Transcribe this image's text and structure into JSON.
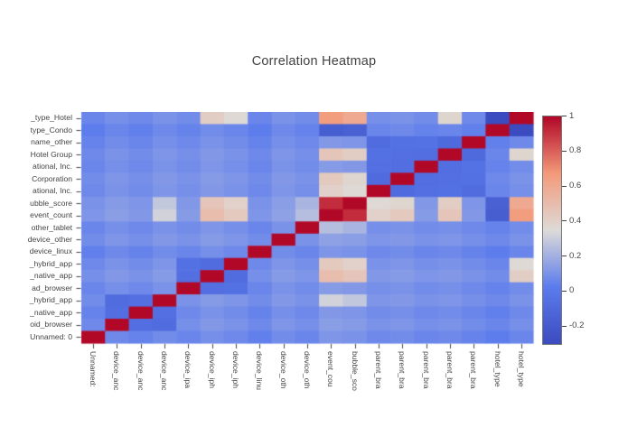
{
  "chart_data": {
    "type": "heatmap",
    "title": "Correlation Heatmap",
    "x_labels": [
      "Unnamed:",
      "device_anc",
      "device_anc",
      "device_anc",
      "device_ipa",
      "device_iph",
      "device_iph",
      "device_linu",
      "device_oth",
      "device_oth",
      "event_cou",
      "bubble_sco",
      "parent_bra",
      "parent_bra",
      "parent_bra",
      "parent_bra",
      "parent_bra",
      "hotel_type",
      "hotel_type"
    ],
    "y_labels": [
      "_type_Hotel",
      "type_Condo",
      "name_other",
      "Hotel Group",
      "ational, Inc.",
      "Corporation",
      "ational, Inc.",
      "ubble_score",
      "event_count",
      "other_tablet",
      "device_other",
      "device_linux",
      "_hybrid_app",
      "_native_app",
      "ad_browser",
      "_hybrid_app",
      "_native_app",
      "oid_browser",
      "Unnamed: 0"
    ],
    "z": [
      [
        0.06,
        0.09,
        0.07,
        0.1,
        0.08,
        0.42,
        0.36,
        0.06,
        0.1,
        0.08,
        0.66,
        0.6,
        0.09,
        0.1,
        0.08,
        0.38,
        0.07,
        -0.3,
        1.0
      ],
      [
        0.03,
        0.06,
        0.04,
        0.07,
        0.05,
        0.08,
        0.06,
        0.03,
        0.07,
        0.05,
        -0.18,
        -0.16,
        0.06,
        0.07,
        0.05,
        0.06,
        0.04,
        1.0,
        -0.3
      ],
      [
        0.05,
        0.08,
        0.06,
        0.09,
        0.07,
        0.1,
        0.08,
        0.05,
        0.09,
        0.07,
        0.12,
        0.11,
        -0.08,
        -0.05,
        -0.04,
        -0.1,
        1.0,
        0.04,
        0.07
      ],
      [
        0.07,
        0.1,
        0.08,
        0.11,
        0.09,
        0.12,
        0.1,
        0.07,
        0.11,
        0.09,
        0.46,
        0.42,
        -0.05,
        -0.06,
        -0.07,
        1.0,
        -0.1,
        0.06,
        0.38
      ],
      [
        0.06,
        0.09,
        0.07,
        0.1,
        0.08,
        0.11,
        0.09,
        0.06,
        0.1,
        0.08,
        0.13,
        0.12,
        -0.06,
        -0.07,
        1.0,
        -0.07,
        -0.04,
        0.05,
        0.08
      ],
      [
        0.08,
        0.11,
        0.09,
        0.12,
        0.1,
        0.13,
        0.11,
        0.08,
        0.12,
        0.1,
        0.44,
        0.38,
        -0.09,
        1.0,
        -0.07,
        -0.06,
        -0.05,
        0.07,
        0.1
      ],
      [
        0.07,
        0.1,
        0.08,
        0.11,
        0.09,
        0.12,
        0.1,
        0.07,
        0.11,
        0.09,
        0.4,
        0.36,
        1.0,
        -0.09,
        -0.06,
        -0.05,
        -0.08,
        0.06,
        0.09
      ],
      [
        0.1,
        0.13,
        0.11,
        0.28,
        0.12,
        0.46,
        0.4,
        0.1,
        0.14,
        0.22,
        0.92,
        1.0,
        0.36,
        0.38,
        0.12,
        0.42,
        0.11,
        -0.16,
        0.6
      ],
      [
        0.11,
        0.14,
        0.12,
        0.32,
        0.13,
        0.5,
        0.44,
        0.11,
        0.15,
        0.25,
        1.0,
        0.92,
        0.4,
        0.44,
        0.13,
        0.46,
        0.12,
        -0.18,
        0.66
      ],
      [
        0.06,
        0.09,
        0.07,
        0.1,
        0.08,
        0.11,
        0.09,
        0.06,
        0.1,
        1.0,
        0.25,
        0.22,
        0.09,
        0.1,
        0.08,
        0.09,
        0.07,
        0.05,
        0.08
      ],
      [
        0.08,
        0.11,
        0.09,
        0.12,
        0.1,
        0.13,
        0.11,
        0.08,
        1.0,
        0.1,
        0.15,
        0.14,
        0.11,
        0.12,
        0.1,
        0.11,
        0.09,
        0.07,
        0.1
      ],
      [
        0.04,
        0.07,
        0.05,
        0.08,
        0.06,
        0.09,
        0.07,
        1.0,
        0.08,
        0.06,
        0.11,
        0.1,
        0.07,
        0.08,
        0.06,
        0.07,
        0.05,
        0.03,
        0.06
      ],
      [
        0.07,
        0.1,
        0.08,
        0.11,
        -0.05,
        -0.08,
        1.0,
        0.07,
        0.11,
        0.09,
        0.44,
        0.4,
        0.1,
        0.11,
        0.09,
        0.1,
        0.08,
        0.06,
        0.36
      ],
      [
        0.09,
        0.12,
        0.1,
        0.13,
        -0.06,
        1.0,
        -0.08,
        0.09,
        0.13,
        0.11,
        0.5,
        0.46,
        0.12,
        0.13,
        0.11,
        0.12,
        0.1,
        0.08,
        0.42
      ],
      [
        0.06,
        0.09,
        0.07,
        0.1,
        1.0,
        -0.06,
        -0.05,
        0.06,
        0.1,
        0.08,
        0.13,
        0.12,
        0.09,
        0.1,
        0.08,
        0.09,
        0.07,
        0.05,
        0.08
      ],
      [
        0.08,
        -0.08,
        -0.06,
        1.0,
        0.1,
        0.13,
        0.11,
        0.08,
        0.12,
        0.1,
        0.32,
        0.28,
        0.11,
        0.12,
        0.1,
        0.11,
        0.09,
        0.07,
        0.1
      ],
      [
        0.05,
        -0.07,
        1.0,
        -0.06,
        0.07,
        0.1,
        0.08,
        0.05,
        0.09,
        0.07,
        0.12,
        0.11,
        0.08,
        0.09,
        0.07,
        0.08,
        0.06,
        0.04,
        0.07
      ],
      [
        0.07,
        1.0,
        -0.07,
        -0.08,
        0.09,
        0.12,
        0.1,
        0.07,
        0.11,
        0.09,
        0.14,
        0.13,
        0.1,
        0.11,
        0.09,
        0.1,
        0.08,
        0.06,
        0.09
      ],
      [
        1.0,
        0.07,
        0.05,
        0.08,
        0.06,
        0.09,
        0.07,
        0.04,
        0.08,
        0.06,
        0.11,
        0.1,
        0.07,
        0.08,
        0.06,
        0.07,
        0.05,
        0.03,
        0.06
      ]
    ],
    "zmin": -0.3,
    "zmax": 1,
    "colorbar_ticks": [
      "1",
      "0.8",
      "0.6",
      "0.4",
      "0.2",
      "0",
      "-0.2"
    ],
    "colorscale": "coolwarm blue-gray-red",
    "legend_position": "right",
    "grid": false
  },
  "colors": {
    "background": "#ffffff",
    "title_text": "#424242",
    "axis_text": "#444444",
    "low": "#3b4cc0",
    "mid": "#dddbd8",
    "high": "#b20828"
  }
}
